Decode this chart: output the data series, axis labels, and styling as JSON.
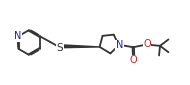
{
  "bg_color": "#ffffff",
  "line_color": "#333333",
  "n_color": "#2020aa",
  "o_color": "#cc2020",
  "s_color": "#333333",
  "line_width": 1.3,
  "font_size": 6.5,
  "figsize": [
    1.9,
    0.85
  ],
  "dpi": 100,
  "xlim": [
    0.0,
    9.5
  ],
  "ylim": [
    1.5,
    5.2
  ]
}
